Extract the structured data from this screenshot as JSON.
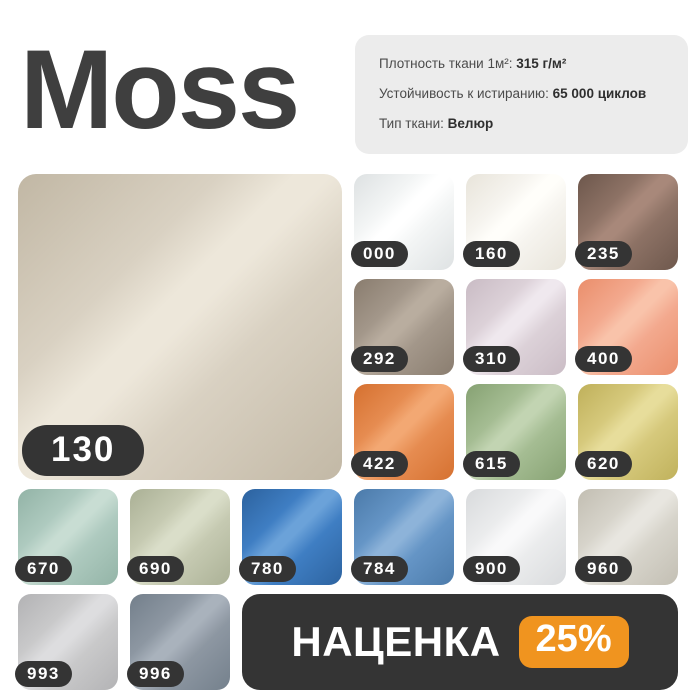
{
  "title": "Moss",
  "specs": [
    {
      "label": "Плотность ткани 1м²:",
      "value": "315 г/м²"
    },
    {
      "label": "Устойчивость к истиранию:",
      "value": "65 000 циклов"
    },
    {
      "label": "Тип ткани:",
      "value": "Велюр"
    }
  ],
  "main_swatch": {
    "code": "130",
    "base": "#d9d1c2",
    "light": "#ede7da",
    "dark": "#c1b7a4"
  },
  "swatches": [
    {
      "code": "000",
      "base": "#f3f5f5",
      "light": "#ffffff",
      "dark": "#dde1e2"
    },
    {
      "code": "160",
      "base": "#f6f4ef",
      "light": "#fffefa",
      "dark": "#e8e4da"
    },
    {
      "code": "235",
      "base": "#8d7265",
      "light": "#a8887a",
      "dark": "#6d574c"
    },
    {
      "code": "292",
      "base": "#a3978a",
      "light": "#b9ad9f",
      "dark": "#897c6e"
    },
    {
      "code": "310",
      "base": "#dcd1d8",
      "light": "#efe8ee",
      "dark": "#c9bbc4"
    },
    {
      "code": "400",
      "base": "#f3a98e",
      "light": "#f9c3aa",
      "dark": "#ea8e6b"
    },
    {
      "code": "422",
      "base": "#e68c51",
      "light": "#f3a873",
      "dark": "#d5702f"
    },
    {
      "code": "615",
      "base": "#a5bd93",
      "light": "#c2d4b2",
      "dark": "#86a172"
    },
    {
      "code": "620",
      "base": "#d6c97c",
      "light": "#e7dd9b",
      "dark": "#bfb05a"
    },
    {
      "code": "670",
      "base": "#aecabf",
      "light": "#c8ddd3",
      "dark": "#92b3a6"
    },
    {
      "code": "690",
      "base": "#c6cab2",
      "light": "#dadec9",
      "dark": "#aab095"
    },
    {
      "code": "780",
      "base": "#3f7ec3",
      "light": "#6ba2d9",
      "dark": "#2c629e"
    },
    {
      "code": "784",
      "base": "#6595c6",
      "light": "#8db3d9",
      "dark": "#4b7aa9"
    },
    {
      "code": "900",
      "base": "#ebeced",
      "light": "#f9f9fa",
      "dark": "#d8dadc"
    },
    {
      "code": "960",
      "base": "#d7d4cb",
      "light": "#e8e6e0",
      "dark": "#c2beb2"
    },
    {
      "code": "993",
      "base": "#c9c9ca",
      "light": "#dddddf",
      "dark": "#b2b2b4"
    },
    {
      "code": "996",
      "base": "#8d97a2",
      "light": "#a9b2bc",
      "dark": "#737f8b"
    }
  ],
  "promo": {
    "label": "НАЦЕНКА",
    "value": "25%"
  },
  "colors": {
    "accent_orange": "#f0941f",
    "badge_dark": "#343434",
    "badge_text": "#ffffff",
    "info_bg": "#ececec",
    "title": "#3f3f3f",
    "page_bg": "#ffffff"
  }
}
